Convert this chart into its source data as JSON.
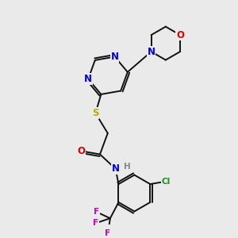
{
  "background_color": "#eaeaea",
  "figsize": [
    3.0,
    3.0
  ],
  "dpi": 100,
  "atom_colors": {
    "N": "#0000ee",
    "O": "#dd0000",
    "S": "#bbaa00",
    "Cl": "#228b22",
    "F": "#cc00cc",
    "C": "#000000",
    "H": "#888888"
  },
  "bond_color": "#111111",
  "bond_width": 1.4,
  "font_size_atom": 8.5,
  "font_size_small": 7.5
}
